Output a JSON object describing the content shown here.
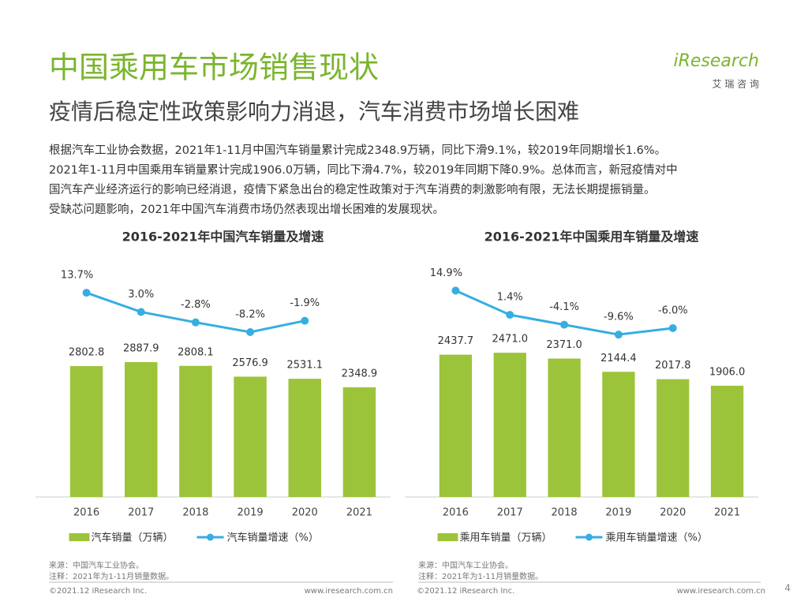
{
  "header": {
    "title": "中国乘用车市场销售现状",
    "subtitle": "疫情后稳定性政策影响力消退，汽车消费市场增长困难",
    "logo": "iResearch",
    "logo_cn": "艾 瑞 咨 询"
  },
  "body": [
    "根据汽车工业协会数据，2021年1-11月中国汽车销量累计完成2348.9万辆，同比下滑9.1%，较2019年同期增长1.6%。",
    "2021年1-11月中国乘用车销量累计完成1906.0万辆，同比下滑4.7%，较2019年同期下降0.9%。总体而言，新冠疫情对中",
    "国汽车产业经济运行的影响已经消退，疫情下紧急出台的稳定性政策对于汽车消费的刺激影响有限，无法长期提振销量。",
    "受缺芯问题影响，2021年中国汽车消费市场仍然表现出增长困难的发展现状。"
  ],
  "chart_data": [
    {
      "type": "bar_line",
      "title": "2016-2021年中国汽车销量及增速",
      "categories": [
        "2016",
        "2017",
        "2018",
        "2019",
        "2020",
        "2021"
      ],
      "ylim": [
        0,
        5000
      ],
      "y2lim": [
        -100,
        30
      ],
      "series": [
        {
          "name": "汽车销量（万辆）",
          "type": "bar",
          "color": "#9cc43a",
          "values": [
            2802.8,
            2887.9,
            2808.1,
            2576.9,
            2531.1,
            2348.9
          ],
          "value_labels": [
            "2802.8",
            "2887.9",
            "2808.1",
            "2576.9",
            "2531.1",
            "2348.9"
          ]
        },
        {
          "name": "汽车销量增速（%）",
          "type": "line",
          "axis": "y2",
          "color": "#36aee0",
          "values": [
            13.7,
            3.0,
            -2.8,
            -8.2,
            -1.9,
            null
          ],
          "value_labels": [
            "13.7%",
            "3.0%",
            "-2.8%",
            "-8.2%",
            "-1.9%",
            null
          ]
        }
      ],
      "source": [
        "来源：中国汽车工业协会。",
        "注释：2021年为1-11月销量数据。"
      ]
    },
    {
      "type": "bar_line",
      "title": "2016-2021年中国乘用车销量及增速",
      "categories": [
        "2016",
        "2017",
        "2018",
        "2019",
        "2020",
        "2021"
      ],
      "ylim": [
        0,
        4000
      ],
      "y2lim": [
        -100,
        30
      ],
      "series": [
        {
          "name": "乘用车销量（万辆）",
          "type": "bar",
          "color": "#9cc43a",
          "values": [
            2437.7,
            2471.0,
            2371.0,
            2144.4,
            2017.8,
            1906.0
          ],
          "value_labels": [
            "2437.7",
            "2471.0",
            "2371.0",
            "2144.4",
            "2017.8",
            "1906.0"
          ]
        },
        {
          "name": "乘用车销量增速（%）",
          "type": "line",
          "axis": "y2",
          "color": "#36aee0",
          "values": [
            14.9,
            1.4,
            -4.1,
            -9.6,
            -6.0,
            null
          ],
          "value_labels": [
            "14.9%",
            "1.4%",
            "-4.1%",
            "-9.6%",
            "-6.0%",
            null
          ]
        }
      ],
      "source": [
        "来源：中国汽车工业协会。",
        "注释：2021年为1-11月销量数据。"
      ]
    }
  ],
  "footer": {
    "copyright": [
      "©2021.12 iResearch Inc.",
      "©2021.12 iResearch Inc."
    ],
    "url": [
      "www.iresearch.com.cn",
      "www.iresearch.com.cn"
    ],
    "page": "4"
  }
}
